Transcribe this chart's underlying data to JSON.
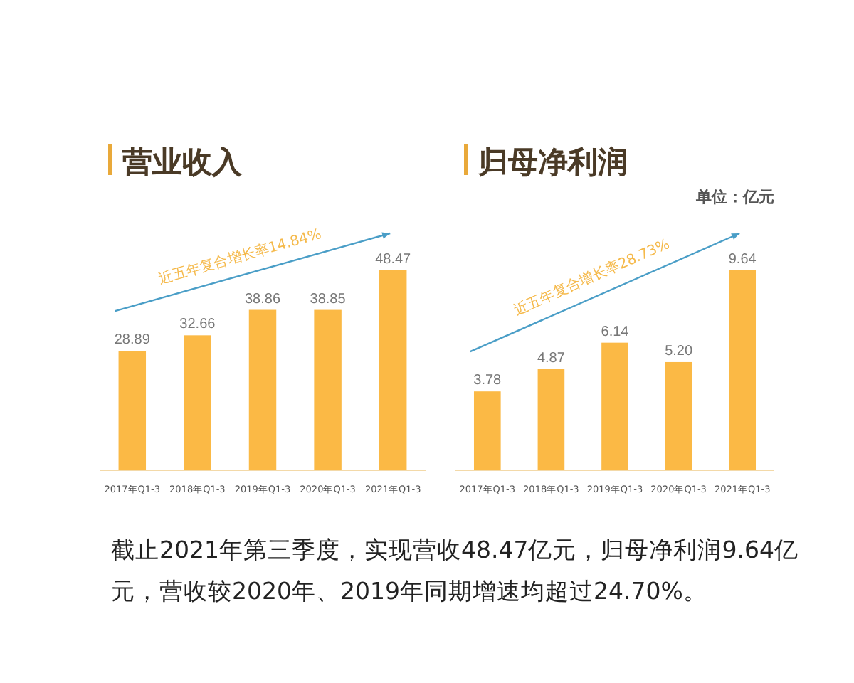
{
  "chart_data": [
    {
      "type": "bar",
      "title": "营业收入",
      "categories": [
        "2017年Q1-3",
        "2018年Q1-3",
        "2019年Q1-3",
        "2020年Q1-3",
        "2021年Q1-3"
      ],
      "values": [
        28.89,
        32.66,
        38.86,
        38.85,
        48.47
      ],
      "color": "#fbb945",
      "data_labels": true,
      "annotations": [
        "近五年复合增长率14.84%",
        "截止2021年第三季度，实现营收48.47亿元，归母净利润9.64亿元，营收较2020年、2019年同期增速均超过24.70%。"
      ]
    },
    {
      "type": "bar",
      "title": "归母净利润",
      "categories": [
        "2017年Q1-3",
        "2018年Q1-3",
        "2019年Q1-3",
        "2020年Q1-3",
        "2021年Q1-3"
      ],
      "values": [
        3.78,
        4.87,
        6.14,
        5.2,
        9.64
      ],
      "value_labels": [
        "3.78",
        "4.87",
        "6.14",
        "5.20",
        "9.64"
      ],
      "color": "#fbb945",
      "annotations": [
        "近五年复合增长率28.73%",
        "单位：亿元"
      ]
    }
  ]
}
